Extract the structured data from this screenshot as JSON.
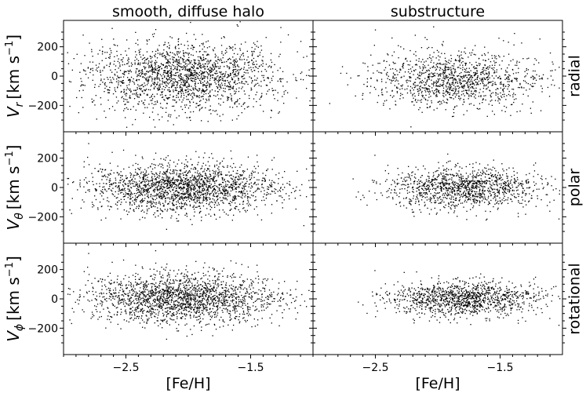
{
  "chart_data": {
    "type": "scatter",
    "grid": false,
    "columns": [
      "smooth, diffuse halo",
      "substructure"
    ],
    "rows": [
      "radial",
      "polar",
      "rotational"
    ],
    "xlabel": "[Fe/H]",
    "xlim": [
      -3.0,
      -1.0
    ],
    "ylim": [
      -380,
      380
    ],
    "x_ticks": [
      -2.5,
      -1.5
    ],
    "x_tick_labels": [
      "−2.5",
      "−1.5"
    ],
    "y_ticks": [
      200,
      0,
      -200
    ],
    "y_tick_labels": [
      "200",
      "0",
      "−200"
    ],
    "ylabel_units": "[km s",
    "ylabel_unit_exp": "−1",
    "ylabel_unit_close": "]",
    "ylabels": [
      {
        "symbol": "V",
        "sub": "r"
      },
      {
        "symbol": "V",
        "sub": "θ"
      },
      {
        "symbol": "V",
        "sub": "ϕ"
      }
    ],
    "marker_color": "#000000",
    "panels": [
      {
        "column": 0,
        "row": 0,
        "n_points": 1900,
        "x_mean": -2.05,
        "x_sd": 0.38,
        "y_mean": 0,
        "y_sd": 115
      },
      {
        "column": 1,
        "row": 0,
        "n_points": 1200,
        "x_mean": -1.85,
        "x_sd": 0.33,
        "y_mean": -20,
        "y_sd": 95
      },
      {
        "column": 0,
        "row": 1,
        "n_points": 1900,
        "x_mean": -2.05,
        "x_sd": 0.38,
        "y_mean": 0,
        "y_sd": 85
      },
      {
        "column": 1,
        "row": 1,
        "n_points": 1200,
        "x_mean": -1.8,
        "x_sd": 0.3,
        "y_mean": 0,
        "y_sd": 70
      },
      {
        "column": 0,
        "row": 2,
        "n_points": 1900,
        "x_mean": -2.05,
        "x_sd": 0.38,
        "y_mean": 10,
        "y_sd": 85
      },
      {
        "column": 1,
        "row": 2,
        "n_points": 1200,
        "x_mean": -1.8,
        "x_sd": 0.3,
        "y_mean": 5,
        "y_sd": 60
      }
    ]
  }
}
